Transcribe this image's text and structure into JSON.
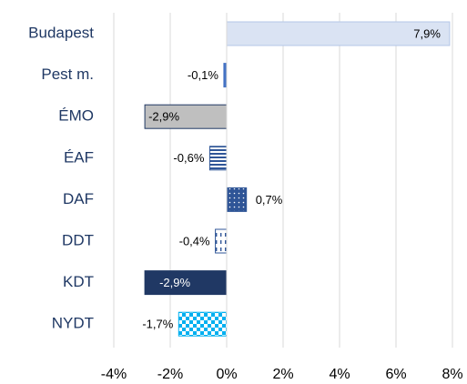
{
  "chart_data": {
    "type": "bar",
    "orientation": "horizontal",
    "categories": [
      "Budapest",
      "Pest m.",
      "ÉMO",
      "ÉAF",
      "DAF",
      "DDT",
      "KDT",
      "NYDT"
    ],
    "values": [
      7.9,
      -0.1,
      -2.9,
      -0.6,
      0.7,
      -0.4,
      -2.9,
      -1.7
    ],
    "value_labels": [
      "7,9%",
      "-0,1%",
      "-2,9%",
      "-0,6%",
      "0,7%",
      "-0,4%",
      "-2,9%",
      "-1,7%"
    ],
    "colors": [
      "#dae3f3",
      "#4472c4",
      "#bfbfbf",
      "#2f5597",
      "#2f5597",
      "#2f5597",
      "#203864",
      "#00b0f0"
    ],
    "xlim": [
      -4,
      8
    ],
    "xticks": [
      {
        "value": -4,
        "label": "-4%"
      },
      {
        "value": -2,
        "label": "-2%"
      },
      {
        "value": 0,
        "label": "0%"
      },
      {
        "value": 2,
        "label": "2%"
      },
      {
        "value": 4,
        "label": "4%"
      },
      {
        "value": 6,
        "label": "6%"
      },
      {
        "value": 8,
        "label": "8%"
      }
    ],
    "grid": true
  }
}
